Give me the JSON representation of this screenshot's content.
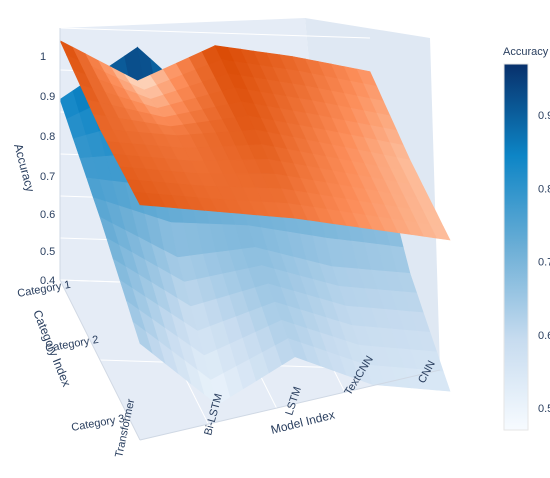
{
  "chart_data": {
    "type": "surface",
    "x_axis": {
      "label": "Model Index",
      "ticks": [
        "Transformer",
        "Bi-LSTM",
        "LSTM",
        "TextCNN",
        "CNN"
      ]
    },
    "y_axis": {
      "label": "Category Index",
      "ticks": [
        "Category 1",
        "Category 2",
        "Category 3"
      ]
    },
    "z_axis": {
      "label": "Accuracy",
      "ticks": [
        "0.4",
        "0.5",
        "0.6",
        "0.7",
        "0.8",
        "0.9",
        "1"
      ],
      "range": [
        0.4,
        1.0
      ]
    },
    "colorbar": {
      "title": "Accuracy",
      "ticks": [
        "0.5",
        "0.6",
        "0.7",
        "0.8",
        "0.9"
      ],
      "range": [
        0.47,
        0.97
      ],
      "colors": [
        "#f7fbff",
        "#c6dbef",
        "#6baed6",
        "#0d85c6",
        "#08306b"
      ]
    },
    "surfaces": [
      {
        "colors": [
          "#fde8d6",
          "#fc8d59",
          "#d94801"
        ],
        "values": [
          [
            0.97,
            0.88,
            0.97,
            0.95,
            0.92
          ],
          [
            0.95,
            0.94,
            0.96,
            0.93,
            0.9
          ],
          [
            0.96,
            0.95,
            0.94,
            0.92,
            0.9
          ]
        ]
      },
      {
        "colors": "colorbar",
        "values": [
          [
            0.83,
            0.96,
            0.8,
            0.86,
            0.81
          ],
          [
            0.74,
            0.65,
            0.68,
            0.64,
            0.63
          ],
          [
            0.63,
            0.49,
            0.61,
            0.55,
            0.54
          ]
        ]
      }
    ]
  }
}
